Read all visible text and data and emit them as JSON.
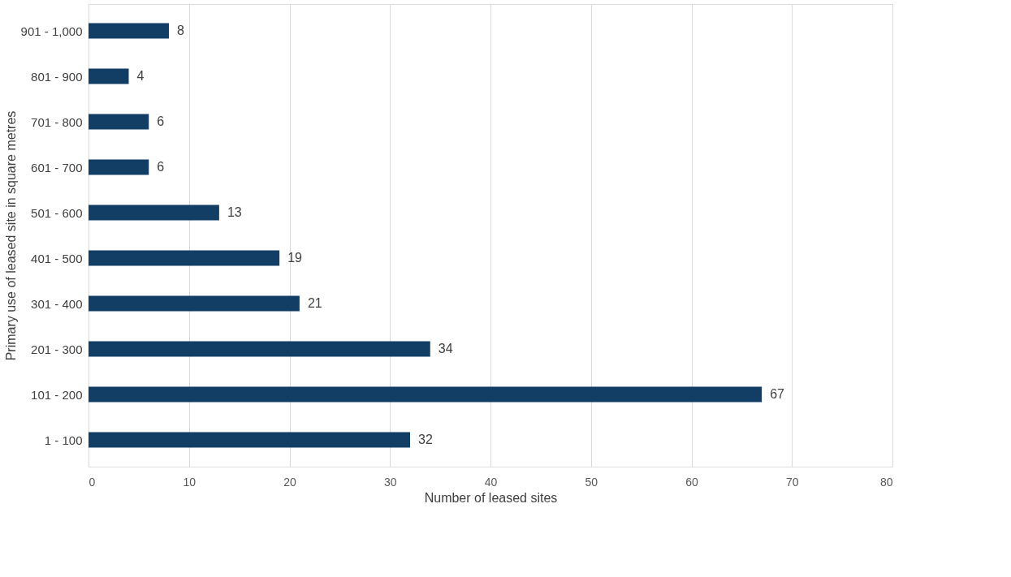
{
  "chart_data": {
    "type": "bar",
    "orientation": "horizontal",
    "categories": [
      "901 - 1,000",
      "801 - 900",
      "701 - 800",
      "601 - 700",
      "501 - 600",
      "401 - 500",
      "301 - 400",
      "201 - 300",
      "101 - 200",
      "1 - 100"
    ],
    "values": [
      8,
      4,
      6,
      6,
      13,
      19,
      21,
      34,
      67,
      32
    ],
    "color": "#123d64",
    "xlim": [
      0,
      80
    ],
    "xticks": [
      0,
      10,
      20,
      30,
      40,
      50,
      60,
      70,
      80
    ],
    "xlabel": "Number of leased sites",
    "ylabel": "Primary use of leased site in square metres",
    "grid": "x",
    "data_labels": true
  }
}
